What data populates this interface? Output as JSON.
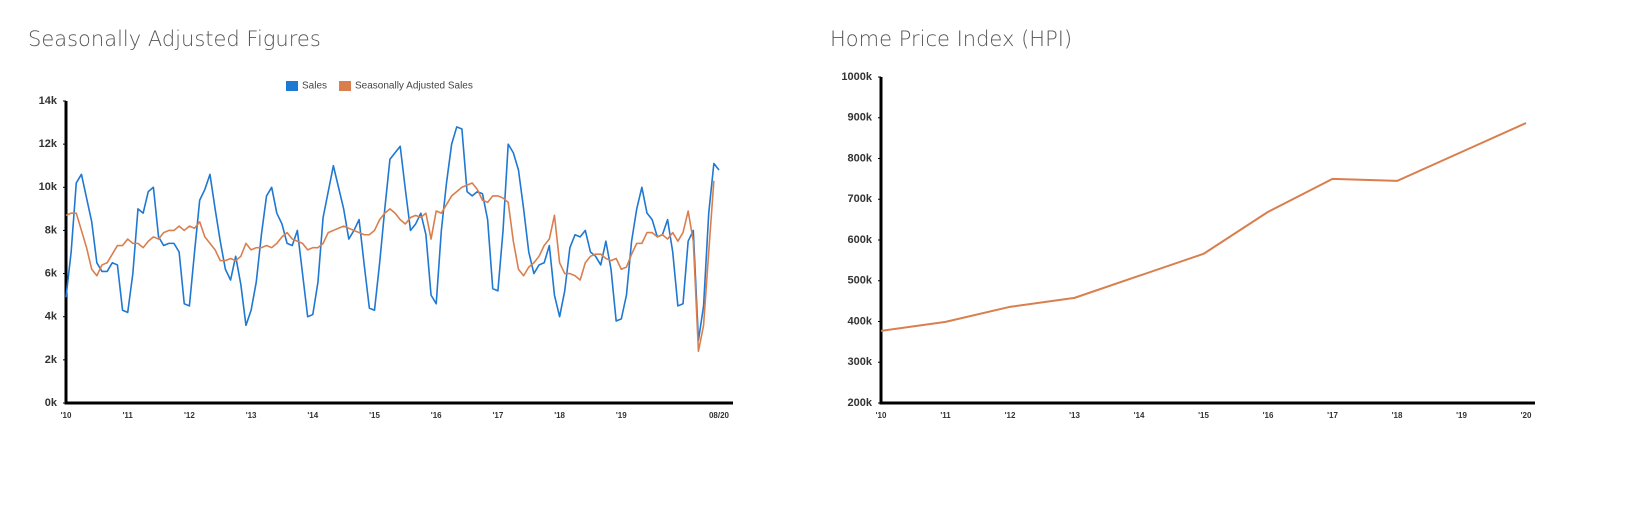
{
  "chart_data": [
    {
      "type": "line",
      "title": "Seasonally Adjusted Figures",
      "legend": "top",
      "categories": [
        "'10",
        null,
        null,
        null,
        null,
        null,
        null,
        null,
        null,
        null,
        null,
        null,
        "'11",
        null,
        null,
        null,
        null,
        null,
        null,
        null,
        null,
        null,
        null,
        null,
        "'12",
        null,
        null,
        null,
        null,
        null,
        null,
        null,
        null,
        null,
        null,
        null,
        "'13",
        null,
        null,
        null,
        null,
        null,
        null,
        null,
        null,
        null,
        null,
        null,
        "'14",
        null,
        null,
        null,
        null,
        null,
        null,
        null,
        null,
        null,
        null,
        null,
        "'15",
        null,
        null,
        null,
        null,
        null,
        null,
        null,
        null,
        null,
        null,
        null,
        "'16",
        null,
        null,
        null,
        null,
        null,
        null,
        null,
        null,
        null,
        null,
        null,
        "'17",
        null,
        null,
        null,
        null,
        null,
        null,
        null,
        null,
        null,
        null,
        null,
        "'18",
        null,
        null,
        null,
        null,
        null,
        null,
        null,
        null,
        null,
        null,
        null,
        "'19",
        null,
        null,
        null,
        null,
        null,
        null,
        null,
        null,
        null,
        null,
        null,
        null,
        null,
        null,
        null,
        null,
        null,
        null,
        "08/20"
      ],
      "series": [
        {
          "name": "Sales",
          "color": "#1f78d1",
          "values": [
            4900,
            7000,
            10200,
            10600,
            9500,
            8400,
            6500,
            6100,
            6100,
            6500,
            6400,
            4300,
            4200,
            6000,
            9000,
            8800,
            9800,
            10000,
            7700,
            7300,
            7400,
            7400,
            7000,
            4600,
            4500,
            7000,
            9400,
            9900,
            10600,
            9000,
            7500,
            6200,
            5700,
            6800,
            5500,
            3600,
            4300,
            5600,
            7800,
            9600,
            10000,
            8800,
            8300,
            7400,
            7300,
            8000,
            6000,
            4000,
            4100,
            5600,
            8600,
            9800,
            11000,
            10000,
            9000,
            7600,
            8000,
            8500,
            6400,
            4400,
            4300,
            6500,
            9000,
            11300,
            11600,
            11900,
            9900,
            8000,
            8300,
            8800,
            7800,
            5000,
            4600,
            8000,
            10200,
            12000,
            12800,
            12700,
            9800,
            9600,
            9800,
            9700,
            8500,
            5300,
            5200,
            8000,
            12000,
            11600,
            10800,
            9000,
            7000,
            6000,
            6400,
            6500,
            7300,
            5000,
            4000,
            5200,
            7200,
            7800,
            7700,
            8000,
            7000,
            6800,
            6400,
            7500,
            6200,
            3800,
            3900,
            5000,
            7500,
            9000,
            10000,
            8800,
            8500,
            7700,
            7800,
            8500,
            7000,
            4500,
            4600,
            7500,
            8000,
            2900,
            4500,
            8800,
            11100,
            10800
          ]
        },
        {
          "name": "Seasonally Adjusted Sales",
          "color": "#d97f4e",
          "values": [
            8700,
            8800,
            8800,
            8000,
            7200,
            6200,
            5900,
            6400,
            6500,
            6900,
            7300,
            7300,
            7600,
            7400,
            7400,
            7200,
            7500,
            7700,
            7600,
            7900,
            8000,
            8000,
            8200,
            8000,
            8200,
            8100,
            8400,
            7700,
            7400,
            7100,
            6600,
            6600,
            6700,
            6600,
            6800,
            7400,
            7100,
            7200,
            7200,
            7300,
            7200,
            7400,
            7700,
            7900,
            7600,
            7500,
            7400,
            7100,
            7200,
            7200,
            7400,
            7900,
            8000,
            8100,
            8200,
            8100,
            8000,
            7900,
            7800,
            7800,
            8000,
            8500,
            8800,
            9000,
            8800,
            8500,
            8300,
            8600,
            8700,
            8600,
            8800,
            7600,
            8900,
            8800,
            9200,
            9600,
            9800,
            10000,
            10100,
            10200,
            9900,
            9400,
            9300,
            9600,
            9600,
            9500,
            9300,
            7500,
            6200,
            5900,
            6300,
            6500,
            6800,
            7300,
            7600,
            8700,
            6500,
            6000,
            6000,
            5900,
            5700,
            6500,
            6800,
            6900,
            6900,
            6700,
            6600,
            6700,
            6200,
            6300,
            6900,
            7400,
            7400,
            7900,
            7900,
            7700,
            7800,
            7600,
            7900,
            7500,
            7900,
            8900,
            7500,
            2400,
            3600,
            7000,
            10300,
            null
          ]
        }
      ],
      "ylim": [
        0,
        14000
      ],
      "yticks": [
        {
          "value": 0,
          "label": "0k"
        },
        {
          "value": 2000,
          "label": "2k"
        },
        {
          "value": 4000,
          "label": "4k"
        },
        {
          "value": 6000,
          "label": "6k"
        },
        {
          "value": 8000,
          "label": "8k"
        },
        {
          "value": 10000,
          "label": "10k"
        },
        {
          "value": 12000,
          "label": "12k"
        },
        {
          "value": 14000,
          "label": "14k"
        }
      ]
    },
    {
      "type": "line",
      "title": "Home Price Index (HPI)",
      "categories": [
        "'10",
        "'11",
        "'12",
        "'13",
        "'14",
        "'15",
        "'16",
        "'17",
        "'18",
        "'19",
        "'20"
      ],
      "values": [
        377000,
        399000,
        436000,
        458000,
        512000,
        566000,
        669000,
        750000,
        745000,
        816000,
        887000
      ],
      "color": "#d97f4e",
      "ylim": [
        200000,
        1000000
      ],
      "yticks": [
        {
          "value": 200000,
          "label": "200k"
        },
        {
          "value": 300000,
          "label": "300k"
        },
        {
          "value": 400000,
          "label": "400k"
        },
        {
          "value": 500000,
          "label": "500k"
        },
        {
          "value": 600000,
          "label": "600k"
        },
        {
          "value": 700000,
          "label": "700k"
        },
        {
          "value": 800000,
          "label": "800k"
        },
        {
          "value": 900000,
          "label": "900k"
        },
        {
          "value": 1000000,
          "label": "1000k"
        }
      ]
    }
  ]
}
